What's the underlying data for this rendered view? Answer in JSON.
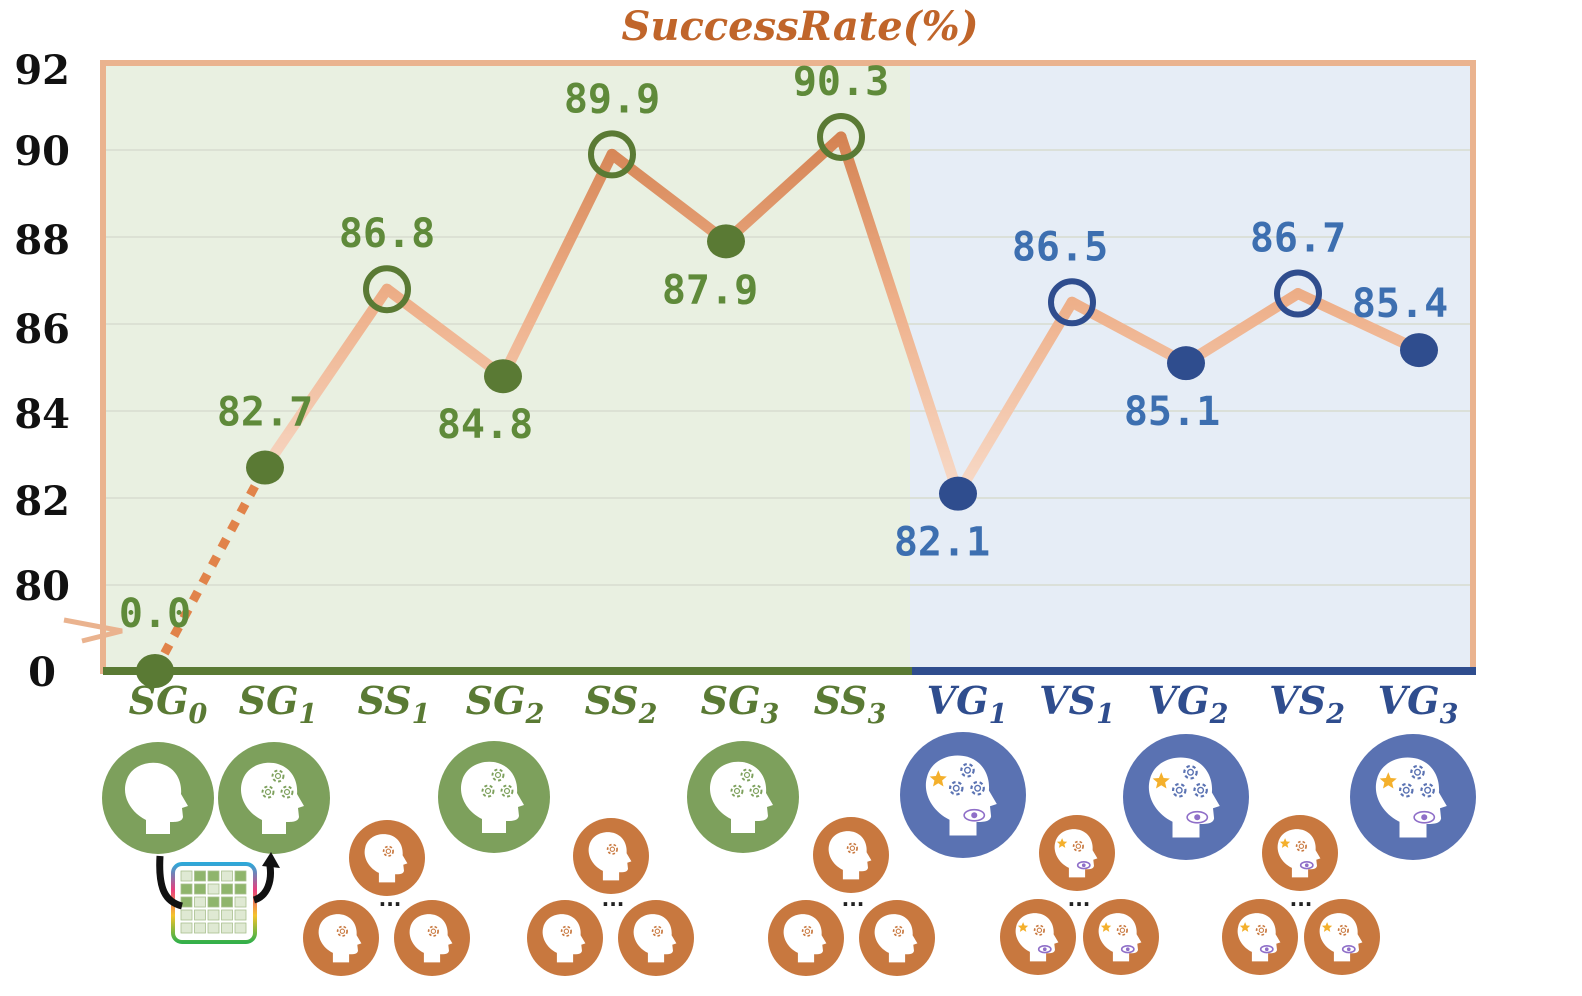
{
  "chart_data": {
    "type": "line",
    "title": "SuccessRate(%)",
    "y_ticks": [
      "92",
      "90",
      "88",
      "86",
      "84",
      "82",
      "80",
      "0"
    ],
    "ylim": [
      80,
      92
    ],
    "axis_break": "between 0 and 80",
    "categories": [
      {
        "base": "SG",
        "sub": "0",
        "group": "S"
      },
      {
        "base": "SG",
        "sub": "1",
        "group": "S"
      },
      {
        "base": "SS",
        "sub": "1",
        "group": "S"
      },
      {
        "base": "SG",
        "sub": "2",
        "group": "S"
      },
      {
        "base": "SS",
        "sub": "2",
        "group": "S"
      },
      {
        "base": "SG",
        "sub": "3",
        "group": "S"
      },
      {
        "base": "SS",
        "sub": "3",
        "group": "S"
      },
      {
        "base": "VG",
        "sub": "1",
        "group": "V"
      },
      {
        "base": "VS",
        "sub": "1",
        "group": "V"
      },
      {
        "base": "VG",
        "sub": "2",
        "group": "V"
      },
      {
        "base": "VS",
        "sub": "2",
        "group": "V"
      },
      {
        "base": "VG",
        "sub": "3",
        "group": "V"
      }
    ],
    "values": [
      0.0,
      82.7,
      86.8,
      84.8,
      89.9,
      87.9,
      90.3,
      82.1,
      86.5,
      85.1,
      86.7,
      85.4
    ],
    "labels": [
      "0.0",
      "82.7",
      "86.8",
      "84.8",
      "89.9",
      "87.9",
      "90.3",
      "82.1",
      "86.5",
      "85.1",
      "86.7",
      "85.4"
    ],
    "marker": [
      "filled",
      "filled",
      "ring",
      "filled",
      "ring",
      "filled",
      "ring",
      "filled",
      "ring",
      "filled",
      "ring",
      "filled"
    ],
    "grid": true,
    "colors": {
      "green": "#5a7a34",
      "green_label": "#5f8a3a",
      "blue": "#2f4d8e",
      "blue_label": "#3d6fb0",
      "line": "#e1834a",
      "frame": "#eab38f",
      "title": "#c0652a",
      "green_bg": "#e9f0e1",
      "blue_bg": "#e6edf6",
      "icon_green": "#7da05c",
      "icon_blue": "#5a72b2",
      "icon_orange": "#c8783f"
    },
    "icons": "head silhouette icons (gear, star, eye) below each stage"
  }
}
